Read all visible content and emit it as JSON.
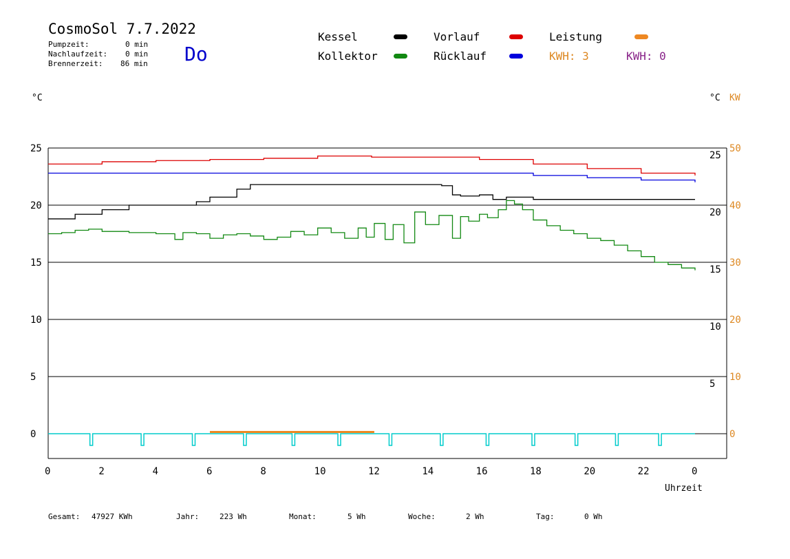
{
  "header": {
    "title": "CosmoSol 7.7.2022",
    "day": "Do",
    "stats": [
      {
        "label": "Pumpzeit:",
        "value": "0 min"
      },
      {
        "label": "Nachlaufzeit:",
        "value": "0 min"
      },
      {
        "label": "Brennerzeit:",
        "value": "86 min"
      }
    ]
  },
  "legend": {
    "kessel": {
      "label": "Kessel",
      "color": "#000000"
    },
    "vorlauf": {
      "label": "Vorlauf",
      "color": "#dd0000"
    },
    "leistung": {
      "label": "Leistung",
      "color": "#ee8822"
    },
    "kollektor": {
      "label": "Kollektor",
      "color": "#118811"
    },
    "ruecklauf": {
      "label": "Rücklauf",
      "color": "#0000dd"
    },
    "kwh1": {
      "text": "KWH: 3",
      "color": "#dd8822"
    },
    "kwh2": {
      "text": "KWH: 0",
      "color": "#882288"
    }
  },
  "axes": {
    "y_left_unit": "°C",
    "y_right_unit": "°C",
    "y_right2_unit": "KW",
    "x_label": "Uhrzeit"
  },
  "footer": {
    "gesamt_label": "Gesamt:",
    "gesamt_value": "47927 KWh",
    "jahr_label": "Jahr:",
    "jahr_value": "223 Wh",
    "monat_label": "Monat:",
    "monat_value": "5 Wh",
    "woche_label": "Woche:",
    "woche_value": "2 Wh",
    "tag_label": "Tag:",
    "tag_value": "0 Wh"
  },
  "chart_data": {
    "type": "line",
    "xlim": [
      0,
      24
    ],
    "ylim": [
      -2,
      26
    ],
    "x_ticks": [
      "0",
      "2",
      "4",
      "6",
      "8",
      "10",
      "12",
      "14",
      "16",
      "18",
      "20",
      "22",
      "0"
    ],
    "y_left_ticks": [
      0,
      5,
      10,
      15,
      20,
      25
    ],
    "y_right_ticks": [
      5,
      10,
      15,
      20,
      25
    ],
    "y_right2_ticks": [
      0,
      10,
      20,
      30,
      40,
      50
    ],
    "grid_y": [
      0,
      5,
      10,
      15,
      20,
      25
    ],
    "series": [
      {
        "name": "Vorlauf",
        "color": "#dd0000",
        "x": [
          0,
          2,
          4,
          6,
          8,
          10,
          12,
          14,
          16,
          18,
          20,
          22,
          24
        ],
        "y": [
          23.6,
          23.8,
          23.9,
          24.0,
          24.1,
          24.3,
          24.2,
          24.2,
          24.0,
          23.6,
          23.2,
          22.8,
          22.6
        ]
      },
      {
        "name": "Rücklauf",
        "color": "#0000dd",
        "x": [
          0,
          4,
          8,
          12,
          14,
          16,
          18,
          20,
          22,
          24
        ],
        "y": [
          22.8,
          22.8,
          22.8,
          22.8,
          22.8,
          22.8,
          22.6,
          22.4,
          22.2,
          22.0
        ]
      },
      {
        "name": "Kessel",
        "color": "#000000",
        "x": [
          0,
          1,
          2,
          3,
          4,
          5,
          5.5,
          6,
          7,
          7.5,
          9,
          11,
          13,
          14,
          14.6,
          15,
          15.3,
          16,
          16.5,
          17,
          17.5,
          18,
          20,
          24
        ],
        "y": [
          18.8,
          19.2,
          19.6,
          20.0,
          20.0,
          20.0,
          20.3,
          20.7,
          21.4,
          21.8,
          21.8,
          21.8,
          21.8,
          21.8,
          21.7,
          20.9,
          20.8,
          20.9,
          20.5,
          20.7,
          20.7,
          20.5,
          20.5,
          20.5
        ]
      },
      {
        "name": "Kollektor",
        "color": "#118811",
        "x": [
          0,
          0.5,
          1,
          1.5,
          2,
          2.5,
          3,
          3.5,
          4,
          4.5,
          4.7,
          5,
          5.5,
          6,
          6.5,
          7,
          7.5,
          8,
          8.5,
          9,
          9.5,
          10,
          10.5,
          11,
          11.5,
          11.8,
          12.1,
          12.5,
          12.8,
          13.2,
          13.6,
          14,
          14.5,
          15,
          15.3,
          15.6,
          16,
          16.3,
          16.7,
          17,
          17.3,
          17.6,
          18,
          18.5,
          19,
          19.5,
          20,
          20.5,
          21,
          21.5,
          22,
          22.5,
          23,
          23.5,
          24
        ],
        "y": [
          17.5,
          17.6,
          17.8,
          17.9,
          17.7,
          17.7,
          17.6,
          17.6,
          17.5,
          17.5,
          17.0,
          17.6,
          17.5,
          17.1,
          17.4,
          17.5,
          17.3,
          17.0,
          17.2,
          17.7,
          17.4,
          18.0,
          17.6,
          17.1,
          18.0,
          17.2,
          18.4,
          17.0,
          18.3,
          16.7,
          19.4,
          18.3,
          19.1,
          17.1,
          19.0,
          18.6,
          19.2,
          18.9,
          19.6,
          20.4,
          20.1,
          19.6,
          18.7,
          18.2,
          17.8,
          17.5,
          17.1,
          16.9,
          16.5,
          16.0,
          15.5,
          15.0,
          14.8,
          14.5,
          14.3
        ]
      },
      {
        "name": "Leistung",
        "color": "#ee8822",
        "x": [
          6,
          12.1
        ],
        "y": [
          0.15,
          0.15
        ]
      }
    ],
    "pulses_x": [
      1.6,
      3.5,
      5.4,
      7.3,
      9.1,
      10.8,
      12.7,
      14.6,
      16.3,
      18.0,
      19.6,
      21.1,
      22.7
    ],
    "zero_line_color": "#00cccc"
  }
}
